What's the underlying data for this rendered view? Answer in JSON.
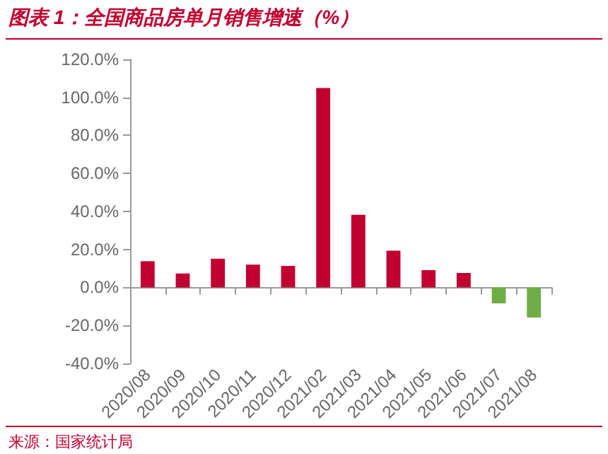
{
  "chart_data": {
    "type": "bar",
    "title": "图表 1：全国商品房单月销售增速（%）",
    "categories": [
      "2020/08",
      "2020/09",
      "2020/10",
      "2020/11",
      "2020/12",
      "2021/02",
      "2021/03",
      "2021/04",
      "2021/05",
      "2021/06",
      "2021/07",
      "2021/08"
    ],
    "values": [
      13.8,
      7.3,
      15.1,
      12.0,
      11.3,
      104.9,
      38.2,
      19.3,
      9.1,
      7.6,
      -8.4,
      -15.8
    ],
    "colors": [
      "#c00030",
      "#c00030",
      "#c00030",
      "#c00030",
      "#c00030",
      "#c00030",
      "#c00030",
      "#c00030",
      "#c00030",
      "#c00030",
      "#70ad47",
      "#70ad47"
    ],
    "ylim": [
      -40,
      120
    ],
    "yticks": [
      {
        "value": -40,
        "label": "-40.0%"
      },
      {
        "value": -20,
        "label": "-20.0%"
      },
      {
        "value": 0,
        "label": "0.0%"
      },
      {
        "value": 20,
        "label": "20.0%"
      },
      {
        "value": 40,
        "label": "40.0%"
      },
      {
        "value": 60,
        "label": "60.0%"
      },
      {
        "value": 80,
        "label": "80.0%"
      },
      {
        "value": 100,
        "label": "100.0%"
      },
      {
        "value": 120,
        "label": "120.0%"
      }
    ],
    "annotations": [
      "来源：国家统计局"
    ]
  }
}
